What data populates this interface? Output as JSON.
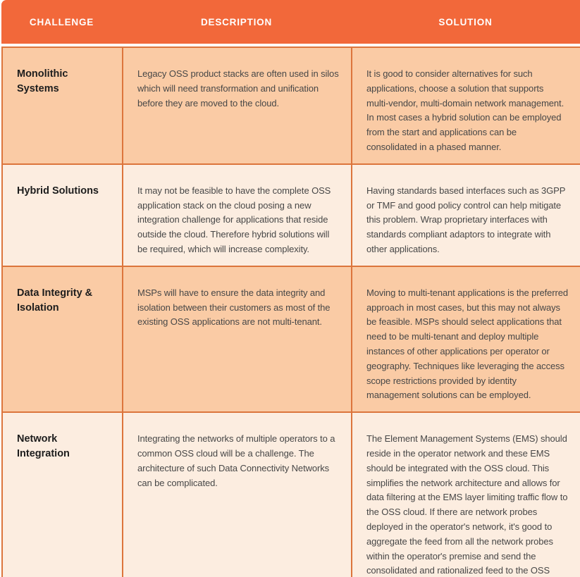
{
  "colors": {
    "header_bg": "#F2683A",
    "border": "#DC753C",
    "row_peach_bg": "#FACBA5",
    "row_cream_bg": "#FCEDE0",
    "header_text": "#FFFFFF",
    "body_text": "#474747"
  },
  "table": {
    "headers": [
      {
        "label": "CHALLENGE"
      },
      {
        "label": "DESCRIPTION"
      },
      {
        "label": "SOLUTION"
      }
    ],
    "rows": [
      {
        "challenge": "Monolithic Systems",
        "description": "Legacy OSS product stacks are often used in silos which will need transformation and unification before they are moved to the cloud.",
        "solution": "It is good to consider alternatives for such applications, choose a solution that supports multi-vendor, multi-domain network management. In most cases a hybrid solution can be employed from the start and applications can be consolidated in a phased manner."
      },
      {
        "challenge": "Hybrid Solutions",
        "description": "It may not be feasible to have the complete OSS application stack on the cloud posing a new integration challenge for applications that reside outside the cloud. Therefore hybrid solutions will be required, which will increase complexity.",
        "solution": "Having standards based interfaces such as 3GPP or TMF and good policy control can help mitigate this problem. Wrap proprietary interfaces with standards compliant adaptors to integrate with other applications."
      },
      {
        "challenge": "Data Integrity & Isolation",
        "description": "MSPs will have to ensure the data integrity and isolation between their customers as most of the existing OSS applications are not multi-tenant.",
        "solution": "Moving to multi-tenant applications is the preferred approach in most cases, but this may not always be feasible. MSPs should select applications that need to be multi-tenant and deploy multiple instances of other applications per operator or geography. Techniques like leveraging the access scope restrictions provided by identity management solutions can be employed."
      },
      {
        "challenge": "Network Integration",
        "description": "Integrating the networks of multiple operators to a common OSS cloud will be a challenge. The architecture of such Data Connectivity Networks can be complicated.",
        "solution": "The Element Management Systems (EMS) should reside in the operator network and these EMS should be integrated with the OSS cloud. This simplifies the network architecture and allows for data filtering at the EMS layer limiting traffic flow to the OSS cloud. If there are network probes deployed in the operator's network, it's good to aggregate the feed from all the network probes within the operator's premise and send the consolidated and rationalized feed to the OSS cloud."
      }
    ]
  }
}
